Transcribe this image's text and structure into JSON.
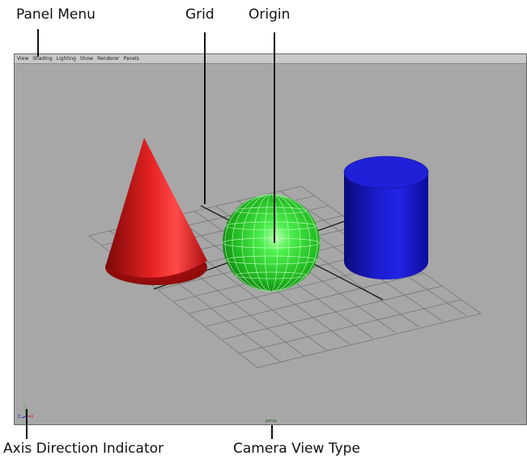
{
  "callouts": {
    "panel_menu": "Panel Menu",
    "grid": "Grid",
    "origin": "Origin",
    "axis_indicator": "Axis Direction Indicator",
    "camera_view_type": "Camera View Type"
  },
  "panel_menu": {
    "items": [
      "View",
      "Shading",
      "Lighting",
      "Show",
      "Renderer",
      "Panels"
    ]
  },
  "viewport": {
    "camera_label": "persp",
    "background_color": "#a7a7a7",
    "objects": [
      {
        "name": "cone",
        "color": "#d21a1a"
      },
      {
        "name": "sphere",
        "color": "#2bd12b"
      },
      {
        "name": "cylinder",
        "color": "#1a1acc"
      }
    ]
  },
  "axis_indicator": {
    "labels": [
      "Y",
      "Z",
      "X"
    ]
  }
}
